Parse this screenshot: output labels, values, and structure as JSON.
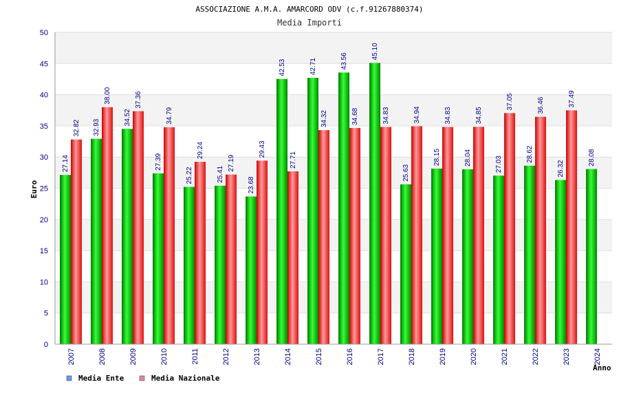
{
  "header": {
    "title": "ASSOCIAZIONE A.M.A. AMARCORD ODV (c.f.91267880374)",
    "subtitle": "Media Importi"
  },
  "chart_data": {
    "type": "bar",
    "ylabel": "Euro",
    "xlabel": "Anno",
    "ylim": [
      0,
      50
    ],
    "yticks": [
      0,
      5,
      10,
      15,
      20,
      25,
      30,
      35,
      40,
      45,
      50
    ],
    "grid": true,
    "legend_placement": "bottom-left",
    "categories": [
      "2007",
      "2008",
      "2009",
      "2010",
      "2011",
      "2012",
      "2013",
      "2014",
      "2015",
      "2016",
      "2017",
      "2018",
      "2019",
      "2020",
      "2021",
      "2022",
      "2023",
      "2024"
    ],
    "series": [
      {
        "name": "Media Ente",
        "color": "#00cc00",
        "legend_color": "#6699ee",
        "values": [
          27.14,
          32.93,
          34.52,
          27.39,
          25.22,
          25.41,
          23.68,
          42.53,
          42.71,
          43.56,
          45.1,
          25.63,
          28.15,
          28.04,
          27.03,
          28.62,
          26.32,
          28.08
        ]
      },
      {
        "name": "Media Nazionale",
        "color": "#ee2222",
        "legend_color": "#dd88aa",
        "values": [
          32.82,
          38.0,
          37.36,
          34.79,
          29.24,
          27.19,
          29.43,
          27.71,
          34.32,
          34.68,
          34.83,
          34.94,
          34.83,
          34.85,
          37.05,
          36.46,
          37.49,
          null
        ]
      }
    ]
  }
}
